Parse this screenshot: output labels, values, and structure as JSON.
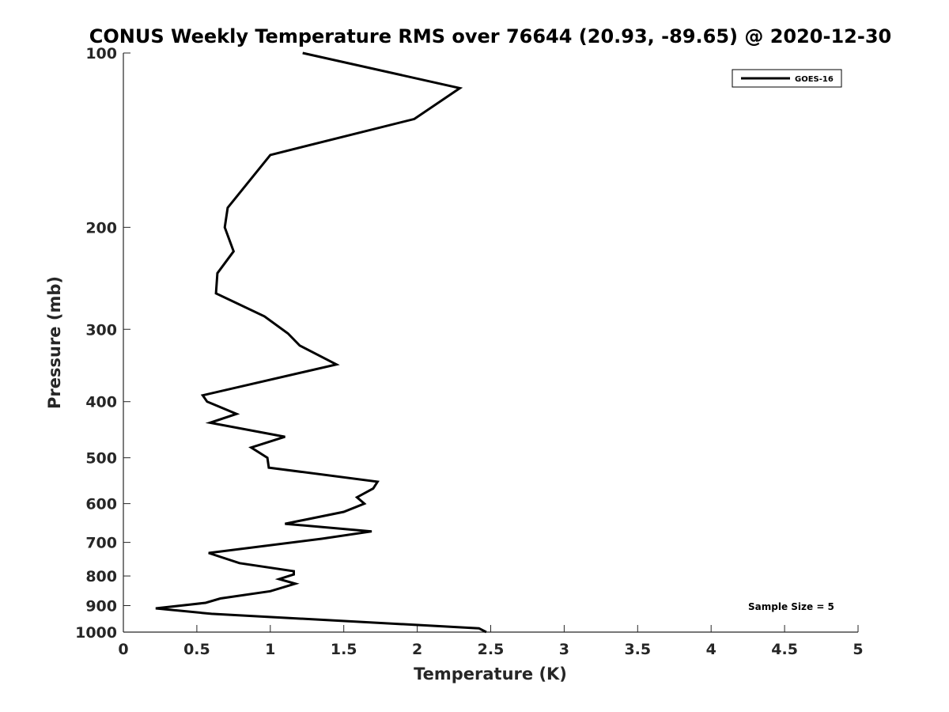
{
  "chart_data": {
    "type": "line",
    "title": "CONUS Weekly Temperature RMS over 76644 (20.93, -89.65) @ 2020-12-30",
    "xlabel": "Temperature (K)",
    "ylabel": "Pressure (mb)",
    "xlim": [
      0,
      5
    ],
    "ylim": [
      100,
      1000
    ],
    "y_scale": "log",
    "y_reversed": true,
    "x_ticks": [
      "0",
      "0.5",
      "1",
      "1.5",
      "2",
      "2.5",
      "3",
      "3.5",
      "4",
      "4.5",
      "5"
    ],
    "x_tick_values": [
      0,
      0.5,
      1,
      1.5,
      2,
      2.5,
      3,
      3.5,
      4,
      4.5,
      5
    ],
    "y_ticks": [
      "100",
      "200",
      "300",
      "400",
      "500",
      "600",
      "700",
      "800",
      "900",
      "1000"
    ],
    "y_tick_values": [
      100,
      200,
      300,
      400,
      500,
      600,
      700,
      800,
      900,
      1000
    ],
    "grid": false,
    "legend_position": "top-right",
    "series": [
      {
        "name": "GOES-16",
        "color": "#000000",
        "points": [
          [
            1.22,
            100
          ],
          [
            2.29,
            115
          ],
          [
            1.98,
            130
          ],
          [
            1.0,
            150
          ],
          [
            0.71,
            185
          ],
          [
            0.69,
            200
          ],
          [
            0.75,
            220
          ],
          [
            0.64,
            240
          ],
          [
            0.63,
            260
          ],
          [
            0.96,
            285
          ],
          [
            1.12,
            305
          ],
          [
            1.2,
            320
          ],
          [
            1.45,
            345
          ],
          [
            0.54,
            390
          ],
          [
            0.57,
            400
          ],
          [
            0.77,
            420
          ],
          [
            0.59,
            435
          ],
          [
            1.1,
            460
          ],
          [
            0.87,
            480
          ],
          [
            0.98,
            500
          ],
          [
            0.99,
            520
          ],
          [
            1.73,
            550
          ],
          [
            1.7,
            565
          ],
          [
            1.59,
            585
          ],
          [
            1.64,
            600
          ],
          [
            1.5,
            620
          ],
          [
            1.1,
            650
          ],
          [
            1.69,
            670
          ],
          [
            1.35,
            690
          ],
          [
            0.58,
            730
          ],
          [
            0.79,
            760
          ],
          [
            1.16,
            785
          ],
          [
            1.16,
            795
          ],
          [
            1.06,
            810
          ],
          [
            1.17,
            825
          ],
          [
            1.0,
            850
          ],
          [
            0.66,
            875
          ],
          [
            0.56,
            890
          ],
          [
            0.22,
            910
          ],
          [
            0.6,
            930
          ],
          [
            2.42,
            985
          ],
          [
            2.47,
            1000
          ]
        ]
      }
    ],
    "annotations": [
      "Sample Size = 5"
    ]
  }
}
